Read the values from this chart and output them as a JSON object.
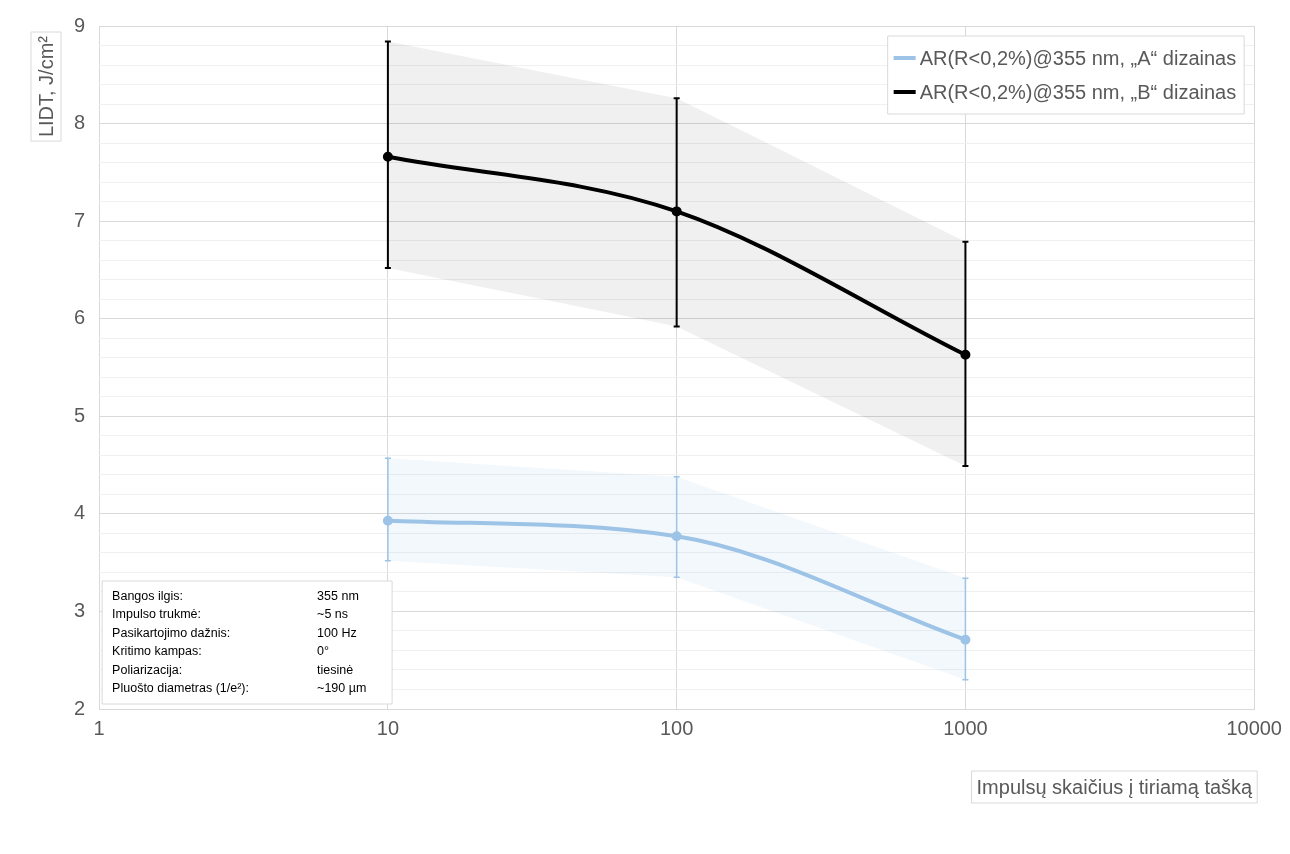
{
  "chart_data": {
    "type": "line",
    "xlabel": "Impulsų skaičius į tiriamą tašką",
    "ylabel": "LIDT, J/cm²",
    "x": [
      10,
      100,
      1000
    ],
    "series": [
      {
        "name": "AR(R<0,2%)@355 nm, „A“ dizainas",
        "color": "#9dc3e6",
        "values": [
          3.93,
          3.77,
          2.71
        ],
        "errors": [
          [
            3.52,
            4.57
          ],
          [
            3.35,
            4.38
          ],
          [
            2.3,
            3.34
          ]
        ],
        "lower": [
          3.52,
          3.35,
          2.3
        ],
        "upper": [
          4.57,
          4.38,
          3.34
        ]
      },
      {
        "name": "AR(R<0,2%)@355 nm, „B“ dizainas",
        "color": "#000000",
        "values": [
          7.66,
          7.1,
          5.63
        ],
        "errors": [
          [
            6.52,
            8.84
          ],
          [
            5.92,
            8.26
          ],
          [
            4.49,
            6.79
          ]
        ],
        "lower": [
          6.52,
          5.92,
          4.49
        ],
        "upper": [
          8.84,
          8.26,
          6.79
        ]
      }
    ],
    "log": "x",
    "xlim": [
      1,
      10000
    ],
    "xticks": [
      1,
      10,
      100,
      1000,
      10000
    ],
    "ylim": [
      2,
      9
    ],
    "yticks": [
      2,
      {
        "value": 2.2,
        "label": null
      },
      {
        "value": 2.4,
        "label": null
      },
      {
        "value": 2.6,
        "label": null
      },
      {
        "value": 2.8,
        "label": null
      },
      3,
      {
        "value": 3.2,
        "label": null
      },
      {
        "value": 3.4,
        "label": null
      },
      {
        "value": 3.6,
        "label": null
      },
      {
        "value": 3.8,
        "label": null
      },
      4,
      {
        "value": 4.2,
        "label": null
      },
      {
        "value": 4.4,
        "label": null
      },
      {
        "value": 4.6,
        "label": null
      },
      {
        "value": 4.8,
        "label": null
      },
      5,
      {
        "value": 5.2,
        "label": null
      },
      {
        "value": 5.4,
        "label": null
      },
      {
        "value": 5.6,
        "label": null
      },
      {
        "value": 5.8,
        "label": null
      },
      6,
      {
        "value": 6.2,
        "label": null
      },
      {
        "value": 6.4,
        "label": null
      },
      {
        "value": 6.6,
        "label": null
      },
      {
        "value": 6.8,
        "label": null
      },
      7,
      {
        "value": 7.2,
        "label": null
      },
      {
        "value": 7.4,
        "label": null
      },
      {
        "value": 7.6,
        "label": null
      },
      {
        "value": 7.8,
        "label": null
      },
      8,
      {
        "value": 8.2,
        "label": null
      },
      {
        "value": 8.4,
        "label": null
      },
      {
        "value": 8.6,
        "label": null
      },
      {
        "value": 8.8,
        "label": null
      },
      9
    ],
    "grid": true,
    "legend": "top right",
    "marker": "circle",
    "line_style": "solid",
    "annotations": [
      "Bangos ilgis:",
      "355 nm",
      "Impulso trukmė:",
      "~5 ns",
      "Pasikartojimo dažnis:",
      "100 Hz",
      "Kritimo kampas:",
      "0°",
      "Poliarizacija:",
      "tiesinė",
      "Pluošto diametras (1/e²):",
      "~190 µm"
    ]
  }
}
